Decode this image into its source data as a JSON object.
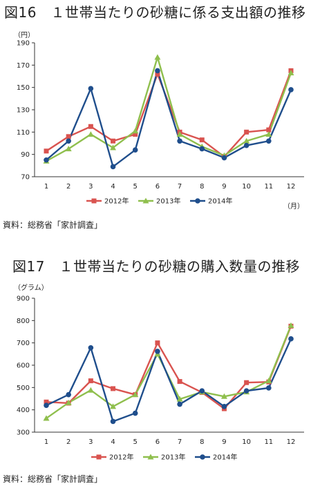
{
  "chart_data": [
    {
      "type": "line",
      "title": "図16　１世帯当たりの砂糖に係る支出額の推移",
      "yunit": "（円）",
      "xunit": "（月）",
      "source": "資料：総務省「家計調査」",
      "categories": [
        "1",
        "2",
        "3",
        "4",
        "5",
        "6",
        "7",
        "8",
        "9",
        "10",
        "11",
        "12"
      ],
      "ylim": [
        70,
        190
      ],
      "yticks": [
        70,
        90,
        110,
        130,
        150,
        170,
        190
      ],
      "grid": false,
      "legend_position": "bottom",
      "series": [
        {
          "name": "2012年",
          "color": "#d9534f",
          "marker": "square",
          "values": [
            93,
            106,
            115,
            102,
            108,
            162,
            110,
            103,
            88,
            110,
            112,
            165
          ]
        },
        {
          "name": "2013年",
          "color": "#8fbf4d",
          "marker": "triangle",
          "values": [
            84,
            95,
            108,
            96,
            111,
            177,
            108,
            97,
            89,
            102,
            108,
            163
          ]
        },
        {
          "name": "2014年",
          "color": "#1f4e8c",
          "marker": "circle",
          "values": [
            85,
            102,
            149,
            79,
            94,
            165,
            102,
            95,
            87,
            98,
            102,
            148
          ]
        }
      ]
    },
    {
      "type": "line",
      "title": "図17　１世帯当たりの砂糖の購入数量の推移",
      "yunit": "（グラム）",
      "source": "資料：総務省「家計調査」",
      "categories": [
        "1",
        "2",
        "3",
        "4",
        "5",
        "6",
        "7",
        "8",
        "9",
        "10",
        "11",
        "12"
      ],
      "ylim": [
        300,
        900
      ],
      "yticks": [
        300,
        400,
        500,
        600,
        700,
        800,
        900
      ],
      "grid": false,
      "legend_position": "bottom",
      "series": [
        {
          "name": "2012年",
          "color": "#d9534f",
          "marker": "square",
          "values": [
            435,
            430,
            530,
            495,
            468,
            700,
            527,
            478,
            405,
            522,
            525,
            775
          ]
        },
        {
          "name": "2013年",
          "color": "#8fbf4d",
          "marker": "triangle",
          "values": [
            362,
            432,
            488,
            415,
            468,
            650,
            448,
            480,
            460,
            480,
            530,
            778
          ]
        },
        {
          "name": "2014年",
          "color": "#1f4e8c",
          "marker": "circle",
          "values": [
            420,
            468,
            678,
            348,
            385,
            662,
            425,
            485,
            415,
            485,
            498,
            718
          ]
        }
      ]
    }
  ]
}
